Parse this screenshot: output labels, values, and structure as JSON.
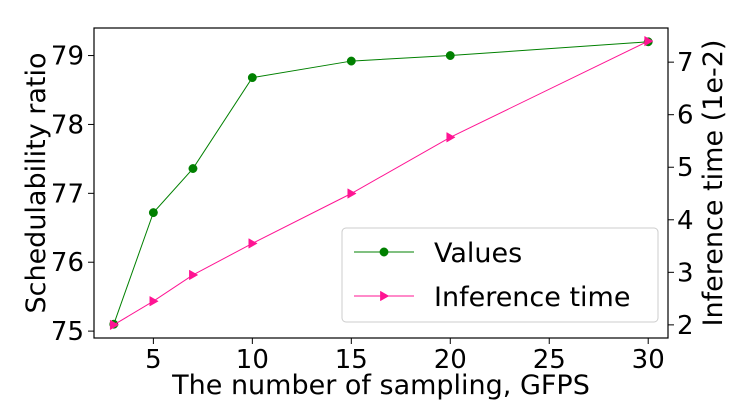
{
  "chart_data": {
    "type": "line",
    "xlabel": "The number of sampling, GFPS",
    "ylabel_left": "Schedulability ratio",
    "ylabel_right": "Inference time (1e-2)",
    "xlim": [
      2,
      31
    ],
    "ylim_left": [
      74.9,
      79.4
    ],
    "ylim_right": [
      1.75,
      7.65
    ],
    "x_ticks": [
      5,
      10,
      15,
      20,
      25,
      30
    ],
    "y_ticks_left": [
      75,
      76,
      77,
      78,
      79
    ],
    "y_ticks_right": [
      2,
      3,
      4,
      5,
      6,
      7
    ],
    "legend_position": "lower-right",
    "series": [
      {
        "name": "Values",
        "axis": "left",
        "color": "#008000",
        "marker": "circle",
        "x": [
          3,
          5,
          7,
          10,
          15,
          20,
          30
        ],
        "y": [
          75.1,
          76.72,
          77.36,
          78.68,
          78.92,
          79.0,
          79.2
        ]
      },
      {
        "name": "Inference time",
        "axis": "right",
        "color": "#ff1493",
        "marker": "triangle-right",
        "x": [
          3,
          5,
          7,
          10,
          15,
          20,
          30
        ],
        "y": [
          2.0,
          2.45,
          2.95,
          3.55,
          4.5,
          5.57,
          7.4
        ]
      }
    ]
  }
}
